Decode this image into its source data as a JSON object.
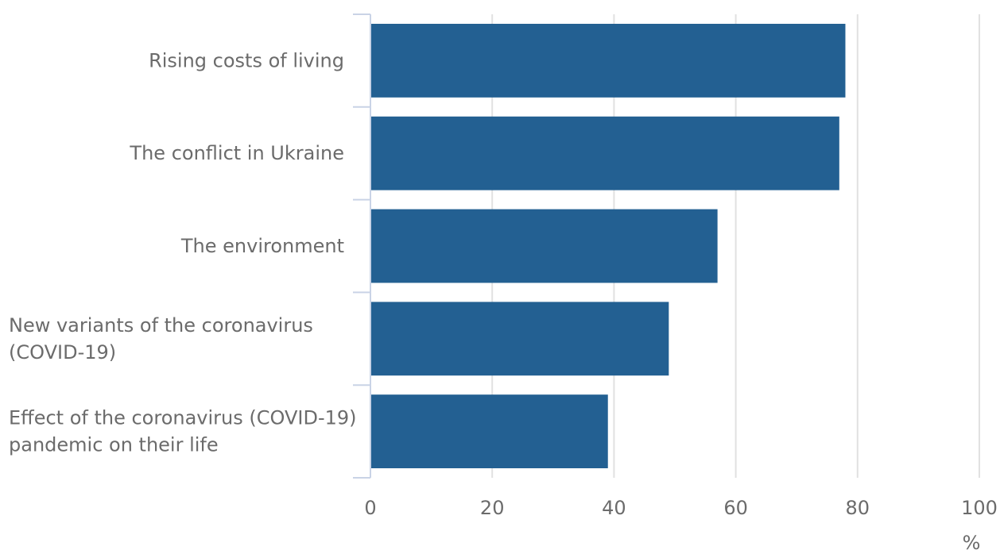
{
  "chart_data": {
    "type": "bar",
    "orientation": "horizontal",
    "categories": [
      [
        "Rising costs of living"
      ],
      [
        "The conflict in Ukraine"
      ],
      [
        "The environment"
      ],
      [
        "New variants of the coronavirus",
        "(COVID-19)"
      ],
      [
        "Effect of the coronavirus (COVID-19)",
        "pandemic on their life"
      ]
    ],
    "values": [
      78,
      77,
      57,
      49,
      39
    ],
    "xlim": [
      0,
      100
    ],
    "xticks": [
      0,
      20,
      40,
      60,
      80,
      100
    ],
    "xticklabels": [
      "0",
      "20",
      "40",
      "60",
      "80",
      "100"
    ],
    "xunit": "%",
    "grid": "vertical",
    "colors": {
      "bar": "#236092",
      "grid": "#e1e1e1",
      "axis": "#c9d3e6",
      "text": "#6b6b6b"
    }
  }
}
